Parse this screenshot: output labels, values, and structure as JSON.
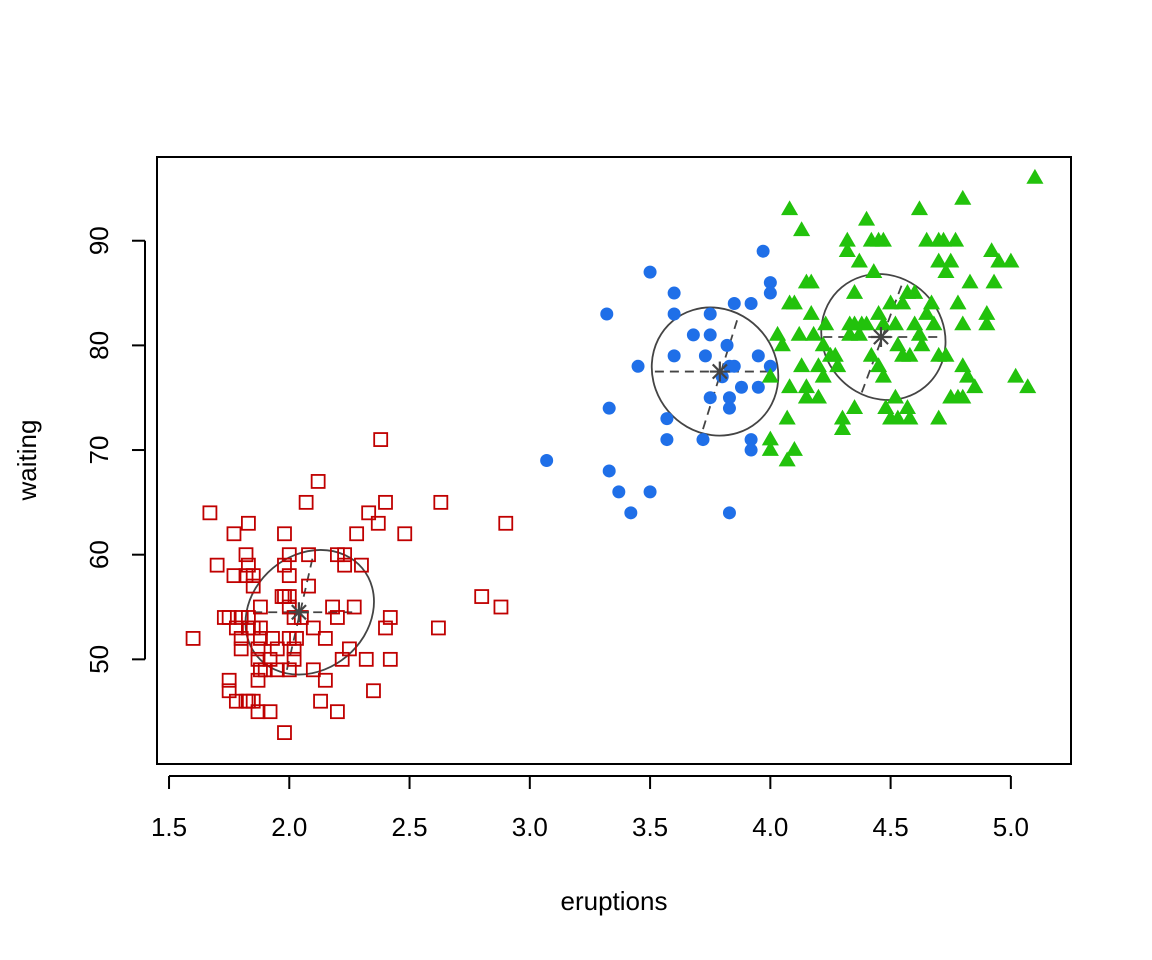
{
  "chart_data": {
    "type": "scatter",
    "xlabel": "eruptions",
    "ylabel": "waiting",
    "xlim": [
      1.45,
      5.25
    ],
    "ylim": [
      40.0,
      98.0
    ],
    "xticks": [
      "1.5",
      "2.0",
      "2.5",
      "3.0",
      "3.5",
      "4.0",
      "4.5",
      "5.0"
    ],
    "yticks": [
      "50",
      "60",
      "70",
      "80",
      "90"
    ],
    "grid": false,
    "legend": "none",
    "series": [
      {
        "marker": "open-square",
        "color": "#c00000",
        "points": [
          [
            1.6,
            52
          ],
          [
            1.67,
            64
          ],
          [
            1.7,
            59
          ],
          [
            1.73,
            54
          ],
          [
            1.75,
            54
          ],
          [
            1.75,
            48
          ],
          [
            1.75,
            47
          ],
          [
            1.77,
            58
          ],
          [
            1.77,
            62
          ],
          [
            1.78,
            53
          ],
          [
            1.78,
            46
          ],
          [
            1.8,
            52
          ],
          [
            1.8,
            54
          ],
          [
            1.8,
            51
          ],
          [
            1.82,
            60
          ],
          [
            1.82,
            58
          ],
          [
            1.82,
            46
          ],
          [
            1.83,
            54
          ],
          [
            1.83,
            59
          ],
          [
            1.83,
            53
          ],
          [
            1.83,
            63
          ],
          [
            1.83,
            46
          ],
          [
            1.85,
            57
          ],
          [
            1.85,
            58
          ],
          [
            1.85,
            53
          ],
          [
            1.85,
            46
          ],
          [
            1.87,
            50
          ],
          [
            1.87,
            51
          ],
          [
            1.87,
            48
          ],
          [
            1.87,
            45
          ],
          [
            1.88,
            53
          ],
          [
            1.88,
            55
          ],
          [
            1.88,
            49
          ],
          [
            1.88,
            52
          ],
          [
            1.9,
            49
          ],
          [
            1.92,
            45
          ],
          [
            1.92,
            50
          ],
          [
            1.93,
            52
          ],
          [
            1.95,
            51
          ],
          [
            1.95,
            49
          ],
          [
            1.97,
            56
          ],
          [
            1.98,
            43
          ],
          [
            1.98,
            62
          ],
          [
            1.98,
            59
          ],
          [
            1.98,
            56
          ],
          [
            2.0,
            60
          ],
          [
            2.0,
            58
          ],
          [
            2.0,
            55
          ],
          [
            2.0,
            56
          ],
          [
            2.0,
            52
          ],
          [
            2.0,
            49
          ],
          [
            2.02,
            50
          ],
          [
            2.02,
            54
          ],
          [
            2.02,
            51
          ],
          [
            2.03,
            52
          ],
          [
            2.05,
            54
          ],
          [
            2.07,
            65
          ],
          [
            2.08,
            57
          ],
          [
            2.08,
            60
          ],
          [
            2.1,
            53
          ],
          [
            2.1,
            49
          ],
          [
            2.12,
            67
          ],
          [
            2.13,
            46
          ],
          [
            2.15,
            52
          ],
          [
            2.15,
            48
          ],
          [
            2.18,
            55
          ],
          [
            2.2,
            45
          ],
          [
            2.2,
            60
          ],
          [
            2.2,
            54
          ],
          [
            2.22,
            50
          ],
          [
            2.23,
            60
          ],
          [
            2.23,
            59
          ],
          [
            2.25,
            51
          ],
          [
            2.27,
            55
          ],
          [
            2.28,
            62
          ],
          [
            2.3,
            59
          ],
          [
            2.32,
            50
          ],
          [
            2.33,
            64
          ],
          [
            2.35,
            47
          ],
          [
            2.37,
            63
          ],
          [
            2.38,
            71
          ],
          [
            2.4,
            65
          ],
          [
            2.4,
            53
          ],
          [
            2.42,
            50
          ],
          [
            2.42,
            54
          ],
          [
            2.48,
            62
          ],
          [
            2.62,
            53
          ],
          [
            2.63,
            65
          ],
          [
            2.8,
            56
          ],
          [
            2.88,
            55
          ],
          [
            2.9,
            63
          ]
        ]
      },
      {
        "marker": "filled-circle",
        "color": "#1f6fe8",
        "points": [
          [
            3.07,
            69
          ],
          [
            3.32,
            83
          ],
          [
            3.33,
            74
          ],
          [
            3.33,
            68
          ],
          [
            3.37,
            66
          ],
          [
            3.42,
            64
          ],
          [
            3.45,
            78
          ],
          [
            3.5,
            87
          ],
          [
            3.5,
            66
          ],
          [
            3.57,
            73
          ],
          [
            3.57,
            71
          ],
          [
            3.6,
            85
          ],
          [
            3.6,
            83
          ],
          [
            3.6,
            79
          ],
          [
            3.68,
            81
          ],
          [
            3.72,
            71
          ],
          [
            3.73,
            79
          ],
          [
            3.75,
            83
          ],
          [
            3.75,
            75
          ],
          [
            3.75,
            81
          ],
          [
            3.8,
            77
          ],
          [
            3.82,
            80
          ],
          [
            3.83,
            78
          ],
          [
            3.83,
            75
          ],
          [
            3.83,
            74
          ],
          [
            3.83,
            64
          ],
          [
            3.85,
            84
          ],
          [
            3.85,
            78
          ],
          [
            3.88,
            76
          ],
          [
            3.92,
            84
          ],
          [
            3.92,
            71
          ],
          [
            3.92,
            70
          ],
          [
            3.95,
            76
          ],
          [
            3.95,
            79
          ],
          [
            3.97,
            89
          ],
          [
            4.0,
            86
          ],
          [
            4.0,
            85
          ],
          [
            4.0,
            78
          ]
        ]
      },
      {
        "marker": "filled-triangle",
        "color": "#22c20c",
        "points": [
          [
            4.0,
            77
          ],
          [
            4.0,
            71
          ],
          [
            4.0,
            70
          ],
          [
            4.03,
            81
          ],
          [
            4.05,
            80
          ],
          [
            4.07,
            73
          ],
          [
            4.07,
            69
          ],
          [
            4.08,
            93
          ],
          [
            4.08,
            84
          ],
          [
            4.08,
            76
          ],
          [
            4.1,
            84
          ],
          [
            4.1,
            70
          ],
          [
            4.12,
            81
          ],
          [
            4.13,
            91
          ],
          [
            4.13,
            78
          ],
          [
            4.15,
            86
          ],
          [
            4.15,
            76
          ],
          [
            4.15,
            75
          ],
          [
            4.17,
            86
          ],
          [
            4.17,
            83
          ],
          [
            4.18,
            81
          ],
          [
            4.2,
            78
          ],
          [
            4.2,
            75
          ],
          [
            4.22,
            80
          ],
          [
            4.22,
            77
          ],
          [
            4.23,
            82
          ],
          [
            4.25,
            79
          ],
          [
            4.27,
            79
          ],
          [
            4.28,
            78
          ],
          [
            4.3,
            73
          ],
          [
            4.3,
            72
          ],
          [
            4.32,
            90
          ],
          [
            4.32,
            89
          ],
          [
            4.33,
            82
          ],
          [
            4.33,
            81
          ],
          [
            4.35,
            85
          ],
          [
            4.35,
            82
          ],
          [
            4.35,
            74
          ],
          [
            4.37,
            88
          ],
          [
            4.37,
            81
          ],
          [
            4.38,
            82
          ],
          [
            4.4,
            92
          ],
          [
            4.4,
            82
          ],
          [
            4.42,
            90
          ],
          [
            4.42,
            79
          ],
          [
            4.43,
            87
          ],
          [
            4.45,
            90
          ],
          [
            4.45,
            83
          ],
          [
            4.45,
            78
          ],
          [
            4.47,
            90
          ],
          [
            4.47,
            82
          ],
          [
            4.47,
            77
          ],
          [
            4.48,
            74
          ],
          [
            4.5,
            84
          ],
          [
            4.5,
            73
          ],
          [
            4.52,
            82
          ],
          [
            4.52,
            75
          ],
          [
            4.53,
            80
          ],
          [
            4.53,
            73
          ],
          [
            4.55,
            84
          ],
          [
            4.55,
            79
          ],
          [
            4.57,
            85
          ],
          [
            4.57,
            74
          ],
          [
            4.58,
            79
          ],
          [
            4.58,
            73
          ],
          [
            4.6,
            85
          ],
          [
            4.6,
            82
          ],
          [
            4.62,
            93
          ],
          [
            4.62,
            81
          ],
          [
            4.63,
            80
          ],
          [
            4.65,
            90
          ],
          [
            4.65,
            83
          ],
          [
            4.67,
            84
          ],
          [
            4.68,
            82
          ],
          [
            4.7,
            90
          ],
          [
            4.7,
            88
          ],
          [
            4.7,
            79
          ],
          [
            4.7,
            73
          ],
          [
            4.72,
            90
          ],
          [
            4.73,
            87
          ],
          [
            4.73,
            79
          ],
          [
            4.75,
            75
          ],
          [
            4.75,
            88
          ],
          [
            4.77,
            90
          ],
          [
            4.78,
            75
          ],
          [
            4.78,
            84
          ],
          [
            4.8,
            94
          ],
          [
            4.8,
            82
          ],
          [
            4.8,
            78
          ],
          [
            4.8,
            75
          ],
          [
            4.82,
            77
          ],
          [
            4.83,
            86
          ],
          [
            4.85,
            76
          ],
          [
            4.9,
            82
          ],
          [
            4.9,
            83
          ],
          [
            4.92,
            89
          ],
          [
            4.93,
            86
          ],
          [
            4.95,
            88
          ],
          [
            5.0,
            88
          ],
          [
            5.02,
            77
          ],
          [
            5.07,
            76
          ],
          [
            5.1,
            96
          ]
        ]
      }
    ],
    "cluster_annotations": [
      {
        "center": [
          2.04,
          54.5
        ],
        "ellipse": {
          "cx": 2.085,
          "cy": 54.5,
          "rx": 0.285,
          "ry": 5.5,
          "angle": -40
        },
        "dashes": {
          "h": [
            1.85,
            2.28
          ],
          "v": [
            [
              1.99,
              49.0
            ],
            [
              2.1,
              60.0
            ]
          ]
        }
      },
      {
        "center": [
          3.79,
          77.5
        ],
        "ellipse": {
          "cx": 3.77,
          "cy": 77.5,
          "rx": 0.255,
          "ry": 6.3,
          "angle": -40
        },
        "dashes": {
          "h": [
            3.52,
            4.01
          ],
          "v": [
            [
              3.72,
              72.0
            ],
            [
              3.87,
              83.0
            ]
          ]
        }
      },
      {
        "center": [
          4.46,
          80.8
        ],
        "ellipse": {
          "cx": 4.47,
          "cy": 80.8,
          "rx": 0.25,
          "ry": 6.2,
          "angle": -40
        },
        "dashes": {
          "h": [
            4.22,
            4.71
          ],
          "v": [
            [
              4.38,
              75.5
            ],
            [
              4.55,
              86.0
            ]
          ]
        }
      }
    ],
    "colors": {
      "axis": "#000000",
      "annotation": "#444444"
    }
  }
}
